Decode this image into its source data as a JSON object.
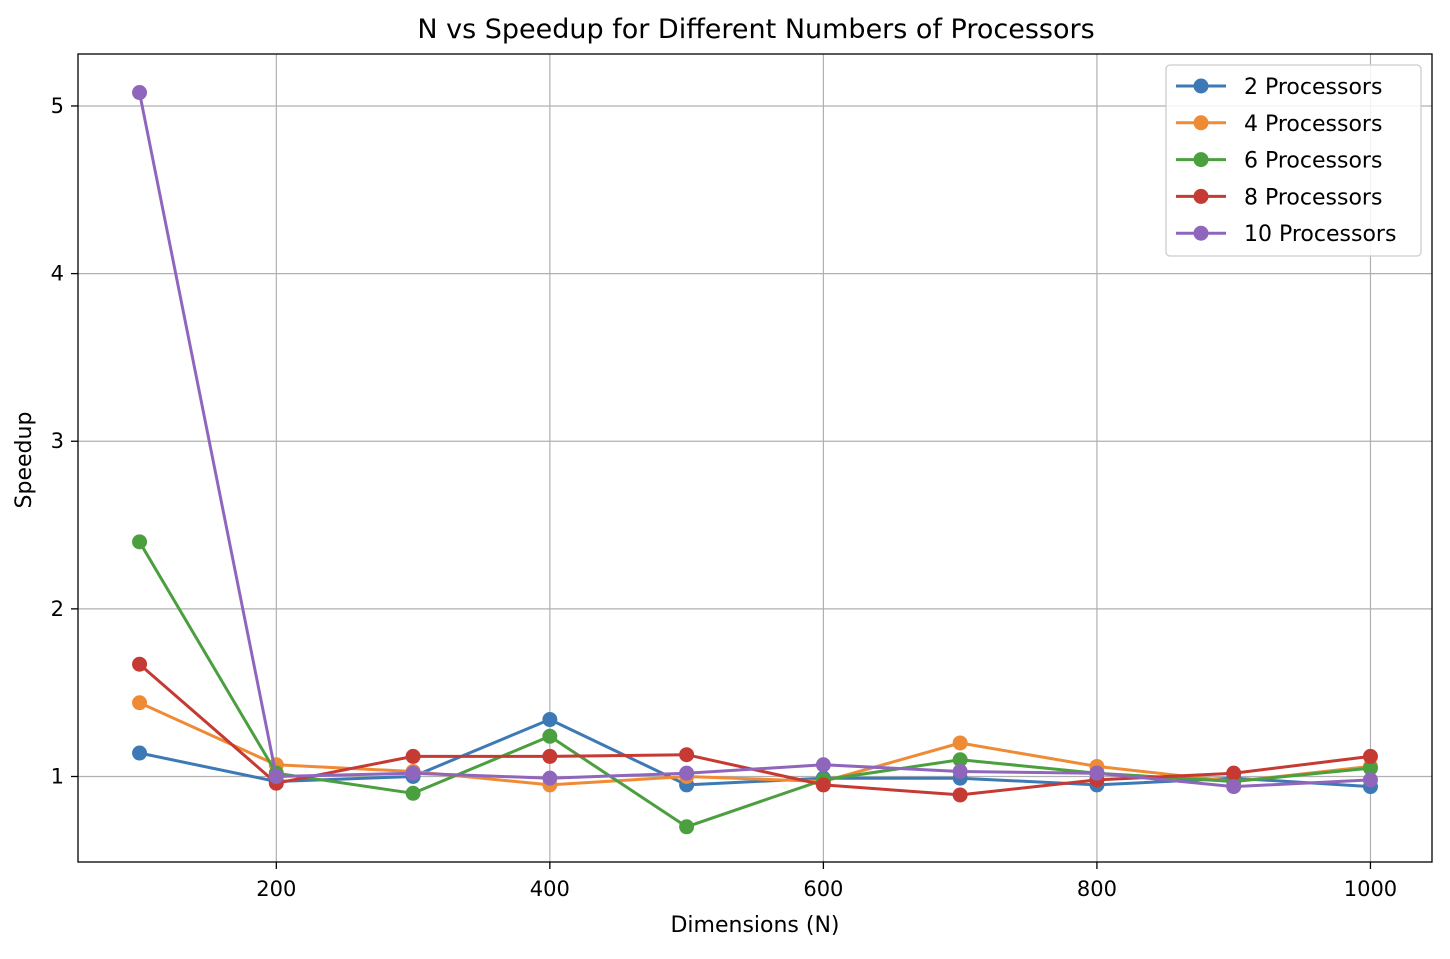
{
  "chart_data": {
    "type": "line",
    "title": "N vs Speedup for Different Numbers of Processors",
    "xlabel": "Dimensions (N)",
    "ylabel": "Speedup",
    "x": [
      100,
      200,
      300,
      400,
      500,
      600,
      700,
      800,
      900,
      1000
    ],
    "xlim": [
      55,
      1045
    ],
    "ylim": [
      0.49,
      5.31
    ],
    "xticks": [
      200,
      400,
      600,
      800,
      1000
    ],
    "yticks": [
      1,
      2,
      3,
      4,
      5
    ],
    "grid": true,
    "legend_position": "top-right",
    "series": [
      {
        "name": "2 Processors",
        "color": "#3d7ab5",
        "values": [
          1.14,
          0.97,
          1.0,
          1.34,
          0.95,
          0.99,
          0.99,
          0.95,
          0.99,
          0.94
        ]
      },
      {
        "name": "4 Processors",
        "color": "#f08b35",
        "values": [
          1.44,
          1.07,
          1.03,
          0.95,
          1.0,
          0.97,
          1.2,
          1.06,
          0.97,
          1.06
        ]
      },
      {
        "name": "6 Processors",
        "color": "#4b9f3f",
        "values": [
          2.4,
          1.02,
          0.9,
          1.24,
          0.7,
          0.98,
          1.1,
          1.02,
          0.97,
          1.05
        ]
      },
      {
        "name": "8 Processors",
        "color": "#c53a32",
        "values": [
          1.67,
          0.96,
          1.12,
          1.12,
          1.13,
          0.95,
          0.89,
          0.98,
          1.02,
          1.12
        ]
      },
      {
        "name": "10 Processors",
        "color": "#9066bd",
        "values": [
          5.08,
          1.0,
          1.02,
          0.99,
          1.02,
          1.07,
          1.03,
          1.02,
          0.94,
          0.98
        ]
      }
    ]
  }
}
